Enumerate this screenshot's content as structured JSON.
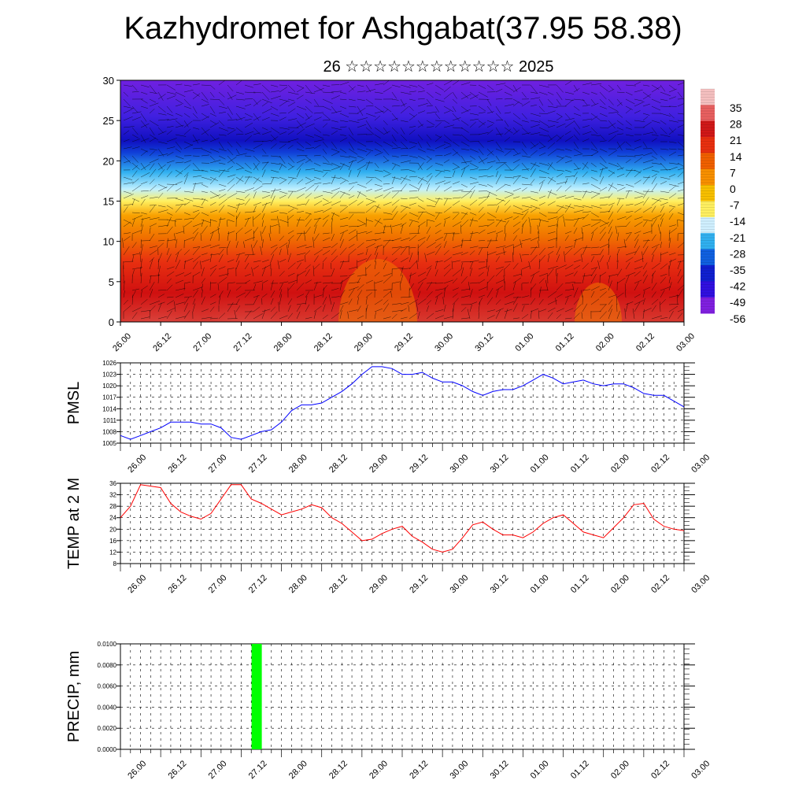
{
  "title": "Kazhydromet for Ashgabat(37.95 58.38)",
  "subtitle": "26 ☆☆☆☆☆☆☆☆☆☆☆☆ 2025",
  "time_labels": [
    "26.00",
    "26.12",
    "27.00",
    "27.12",
    "28.00",
    "28.12",
    "29.00",
    "29.12",
    "30.00",
    "30.12",
    "01.00",
    "01.12",
    "02.00",
    "02.12",
    "03.00"
  ],
  "colors": {
    "pmsl_line": "#0000ff",
    "temp_line": "#ff0000",
    "precip_bar": "#00ff00"
  },
  "chart_data": [
    {
      "type": "heatmap",
      "name": "vertical temperature cross-section with wind vectors",
      "ylabel": "",
      "ylim": [
        0,
        30
      ],
      "y_ticks": [
        0,
        5,
        10,
        15,
        20,
        25,
        30
      ],
      "colorbar_labels": [
        "35",
        "28",
        "21",
        "14",
        "7",
        "0",
        "-7",
        "-14",
        "-21",
        "-28",
        "-35",
        "-42",
        "-49",
        "-56"
      ],
      "colorbar_colors": [
        "#f5c0c0",
        "#e86060",
        "#d01818",
        "#e83010",
        "#f06000",
        "#f89000",
        "#f8c000",
        "#fff060",
        "#d0f0ff",
        "#30b0f0",
        "#1060e0",
        "#1020d0",
        "#3010e0",
        "#8020e0"
      ],
      "grid": false
    },
    {
      "type": "line",
      "ylabel": "PMSL",
      "ylim": [
        1005,
        1026
      ],
      "y_ticks": [
        1005,
        1008,
        1011,
        1014,
        1017,
        1020,
        1023,
        1026
      ],
      "x": [
        0,
        1,
        2,
        3,
        4,
        5,
        6,
        7,
        8,
        9,
        10,
        11,
        12,
        13,
        14,
        15,
        16,
        17,
        18,
        19,
        20,
        21,
        22,
        23,
        24,
        25,
        26,
        27,
        28,
        29,
        30,
        31,
        32,
        33,
        34,
        35,
        36,
        37,
        38,
        39,
        40,
        41,
        42,
        43,
        44,
        45,
        46,
        47,
        48,
        49,
        50,
        51,
        52,
        53,
        54,
        55,
        56
      ],
      "series": [
        {
          "values": [
            1007,
            1006,
            1007,
            1008,
            1009,
            1010.5,
            1010.5,
            1010.5,
            1010,
            1010,
            1009,
            1006.5,
            1006,
            1007,
            1008,
            1008.5,
            1010.5,
            1013.5,
            1015,
            1015,
            1015.5,
            1017,
            1018.5,
            1020.5,
            1023,
            1025,
            1025,
            1024.5,
            1023,
            1023,
            1023.5,
            1022,
            1021,
            1021,
            1020,
            1018.5,
            1017.5,
            1018.5,
            1019,
            1019,
            1020,
            1021.5,
            1023,
            1022,
            1020.5,
            1021,
            1021.5,
            1020.5,
            1020,
            1020.5,
            1020.5,
            1019.5,
            1018,
            1017.5,
            1017.5,
            1016,
            1014.5
          ]
        }
      ],
      "grid": true
    },
    {
      "type": "line",
      "ylabel": "TEMP at 2 M",
      "ylim": [
        8,
        36
      ],
      "y_ticks": [
        8,
        12,
        16,
        20,
        24,
        28,
        32,
        36
      ],
      "x": [
        0,
        1,
        2,
        3,
        4,
        5,
        6,
        7,
        8,
        9,
        10,
        11,
        12,
        13,
        14,
        15,
        16,
        17,
        18,
        19,
        20,
        21,
        22,
        23,
        24,
        25,
        26,
        27,
        28,
        29,
        30,
        31,
        32,
        33,
        34,
        35,
        36,
        37,
        38,
        39,
        40,
        41,
        42,
        43,
        44,
        45,
        46,
        47,
        48,
        49,
        50,
        51,
        52,
        53,
        54,
        55,
        56
      ],
      "series": [
        {
          "values": [
            24,
            28,
            35.5,
            35,
            34.5,
            29,
            26,
            24.5,
            23.5,
            25.5,
            30.5,
            35.5,
            35.5,
            30.5,
            29,
            27,
            25,
            26,
            27,
            28.5,
            27.5,
            24,
            22,
            19,
            16,
            16.5,
            18.5,
            20,
            21,
            17.5,
            15.5,
            13,
            12,
            13,
            17,
            21.5,
            22.5,
            20,
            18,
            18,
            17,
            19,
            22,
            24,
            25,
            22,
            19,
            18,
            17,
            20.5,
            24,
            28.5,
            29,
            23.5,
            21,
            20,
            19.5
          ]
        }
      ],
      "grid": true
    },
    {
      "type": "bar",
      "ylabel": "PRECIP, mm",
      "ylim": [
        0,
        0.01
      ],
      "y_ticks": [
        "0.0000",
        "0.0020",
        "0.0040",
        "0.0060",
        "0.0080",
        "0.0100"
      ],
      "bars": [
        {
          "x": 13.5,
          "value": 0.01
        }
      ],
      "grid": true
    }
  ]
}
